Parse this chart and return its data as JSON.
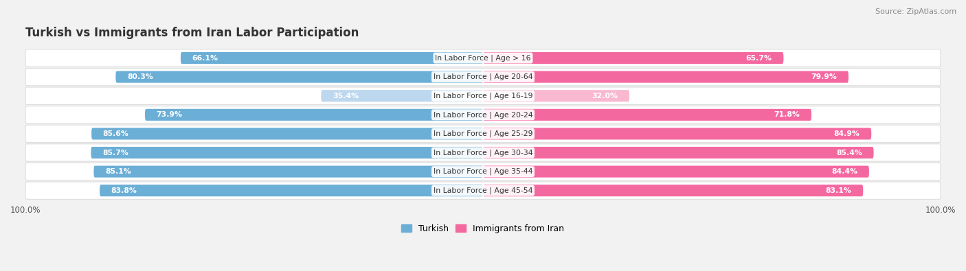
{
  "title": "Turkish vs Immigrants from Iran Labor Participation",
  "source": "Source: ZipAtlas.com",
  "categories": [
    "In Labor Force | Age > 16",
    "In Labor Force | Age 20-64",
    "In Labor Force | Age 16-19",
    "In Labor Force | Age 20-24",
    "In Labor Force | Age 25-29",
    "In Labor Force | Age 30-34",
    "In Labor Force | Age 35-44",
    "In Labor Force | Age 45-54"
  ],
  "turkish_values": [
    66.1,
    80.3,
    35.4,
    73.9,
    85.6,
    85.7,
    85.1,
    83.8
  ],
  "iran_values": [
    65.7,
    79.9,
    32.0,
    71.8,
    84.9,
    85.4,
    84.4,
    83.1
  ],
  "turkish_color": "#6baed6",
  "turkish_color_light": "#bdd7ee",
  "iran_color": "#f468a0",
  "iran_color_light": "#f9b8d0",
  "background_color": "#f2f2f2",
  "row_bg_color": "#ffffff",
  "row_bg_color_alt": "#f7f7f7",
  "bar_height": 0.62,
  "max_value": 100.0,
  "legend_turkish": "Turkish",
  "legend_iran": "Immigrants from Iran",
  "title_fontsize": 12,
  "label_fontsize": 7.8,
  "value_fontsize": 7.8,
  "source_fontsize": 8,
  "threshold_dark": 50
}
